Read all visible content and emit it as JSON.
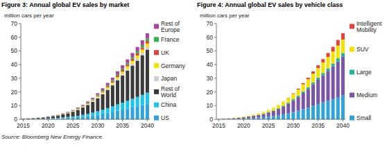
{
  "chart_data": [
    {
      "type": "bar",
      "stacked": true,
      "grid": false,
      "legend": "right",
      "title": "Figure 3: Annual global EV sales by market",
      "y_label": "million cars per year",
      "x": [
        2015,
        2016,
        2017,
        2018,
        2019,
        2020,
        2021,
        2022,
        2023,
        2024,
        2025,
        2026,
        2027,
        2028,
        2029,
        2030,
        2031,
        2032,
        2033,
        2034,
        2035,
        2036,
        2037,
        2038,
        2039,
        2040
      ],
      "xlim": [
        2014.5,
        2040.5
      ],
      "xticks": [
        2015,
        2020,
        2025,
        2030,
        2035,
        2040
      ],
      "ylim": [
        0,
        70
      ],
      "yticks": [
        0,
        10,
        20,
        30,
        40,
        50,
        60,
        70
      ],
      "series": [
        {
          "name": "US",
          "color": "#2fa3dc",
          "values": [
            0.1,
            0.1,
            0.2,
            0.2,
            0.3,
            0.4,
            0.5,
            0.6,
            0.8,
            1.0,
            1.2,
            1.5,
            1.9,
            2.3,
            2.8,
            3.4,
            4.1,
            4.8,
            5.5,
            6.3,
            7.1,
            7.9,
            8.7,
            9.5,
            10.4,
            11.3
          ]
        },
        {
          "name": "China",
          "color": "#19c6e8",
          "values": [
            0.1,
            0.1,
            0.1,
            0.2,
            0.2,
            0.3,
            0.4,
            0.4,
            0.6,
            0.7,
            0.9,
            1.1,
            1.4,
            1.7,
            2.1,
            2.5,
            2.9,
            3.4,
            4.0,
            4.6,
            5.1,
            5.7,
            6.3,
            6.9,
            7.5,
            8.2
          ]
        },
        {
          "name": "Rest of World",
          "color": "#3a3a3a",
          "values": [
            0.3,
            0.4,
            0.5,
            0.6,
            0.8,
            1.1,
            1.4,
            1.7,
            2.2,
            2.7,
            3.4,
            4.3,
            5.3,
            6.5,
            7.9,
            9.5,
            11.3,
            13.3,
            15.3,
            17.5,
            19.8,
            22,
            24.3,
            26.5,
            29,
            31.5
          ]
        },
        {
          "name": "Japan",
          "color": "#d0d0d0",
          "values": [
            0.02,
            0.02,
            0.03,
            0.04,
            0.05,
            0.06,
            0.08,
            0.1,
            0.1,
            0.2,
            0.2,
            0.3,
            0.3,
            0.4,
            0.5,
            0.6,
            0.7,
            0.8,
            0.9,
            1.1,
            1.2,
            1.3,
            1.5,
            1.6,
            1.7,
            1.9
          ]
        },
        {
          "name": "Germany",
          "color": "#f2e400",
          "values": [
            0.02,
            0.03,
            0.04,
            0.05,
            0.06,
            0.08,
            0.1,
            0.1,
            0.2,
            0.2,
            0.3,
            0.3,
            0.4,
            0.5,
            0.6,
            0.8,
            0.9,
            1.1,
            1.2,
            1.4,
            1.6,
            1.8,
            1.9,
            2.1,
            2.3,
            2.5
          ]
        },
        {
          "name": "UK",
          "color": "#e8413c",
          "values": [
            0.02,
            0.02,
            0.03,
            0.04,
            0.05,
            0.06,
            0.08,
            0.1,
            0.1,
            0.2,
            0.2,
            0.3,
            0.3,
            0.4,
            0.5,
            0.6,
            0.7,
            0.8,
            0.9,
            1.1,
            1.2,
            1.3,
            1.5,
            1.6,
            1.7,
            1.9
          ]
        },
        {
          "name": "France",
          "color": "#2db34a",
          "values": [
            0.02,
            0.02,
            0.03,
            0.04,
            0.05,
            0.06,
            0.08,
            0.1,
            0.1,
            0.2,
            0.2,
            0.3,
            0.3,
            0.4,
            0.5,
            0.6,
            0.7,
            0.8,
            0.9,
            1.0,
            1.1,
            1.2,
            1.4,
            1.5,
            1.7,
            1.8
          ]
        },
        {
          "name": "Rest of Europe",
          "color": "#b0419d",
          "values": [
            0.03,
            0.04,
            0.05,
            0.07,
            0.1,
            0.1,
            0.2,
            0.2,
            0.3,
            0.3,
            0.4,
            0.5,
            0.6,
            0.8,
            0.9,
            1.1,
            1.4,
            1.6,
            1.8,
            2.1,
            2.4,
            2.6,
            2.9,
            3.2,
            3.5,
            3.8
          ]
        }
      ]
    },
    {
      "type": "bar",
      "stacked": true,
      "grid": false,
      "legend": "right",
      "title": "Figure 4: Annual global EV sales by vehicle class",
      "y_label": "million cars per year",
      "x": [
        2015,
        2016,
        2017,
        2018,
        2019,
        2020,
        2021,
        2022,
        2023,
        2024,
        2025,
        2026,
        2027,
        2028,
        2029,
        2030,
        2031,
        2032,
        2033,
        2034,
        2035,
        2036,
        2037,
        2038,
        2039,
        2040
      ],
      "xlim": [
        2014.5,
        2040.5
      ],
      "xticks": [
        2015,
        2020,
        2025,
        2030,
        2035,
        2040
      ],
      "ylim": [
        0,
        70
      ],
      "yticks": [
        0,
        10,
        20,
        30,
        40,
        50,
        60,
        70
      ],
      "series": [
        {
          "name": "Small",
          "color": "#2fa3dc",
          "values": [
            0.1,
            0.2,
            0.3,
            0.3,
            0.4,
            0.6,
            0.8,
            1.0,
            1.2,
            1.5,
            1.9,
            2.4,
            2.9,
            3.6,
            4.4,
            5.3,
            6.3,
            7.4,
            8.5,
            9.8,
            11.1,
            12.3,
            13.6,
            14.8,
            16.2,
            17.6
          ]
        },
        {
          "name": "Medium",
          "color": "#7b55a8",
          "values": [
            0.2,
            0.3,
            0.4,
            0.5,
            0.7,
            0.9,
            1.2,
            1.5,
            1.9,
            2.4,
            3.1,
            3.8,
            4.7,
            5.9,
            7.1,
            8.6,
            10.1,
            11.9,
            13.7,
            15.8,
            17.8,
            19.8,
            21.8,
            23.9,
            26.1,
            28.4
          ]
        },
        {
          "name": "Large",
          "color": "#1fb59a",
          "values": [
            0.02,
            0.02,
            0.03,
            0.1,
            0.1,
            0.1,
            0.1,
            0.1,
            0.2,
            0.2,
            0.3,
            0.3,
            0.4,
            0.5,
            0.6,
            0.8,
            0.9,
            1.1,
            1.2,
            1.4,
            1.6,
            1.8,
            1.9,
            2.1,
            2.3,
            2.5
          ]
        },
        {
          "name": "SUV",
          "color": "#f2e400",
          "values": [
            0.2,
            0.2,
            0.2,
            0.3,
            0.4,
            0.5,
            0.6,
            0.8,
            1.0,
            1.3,
            1.5,
            2.0,
            2.5,
            3.0,
            3.5,
            3.9,
            4.5,
            5.2,
            5.9,
            6.4,
            7.0,
            7.7,
            8.3,
            8.8,
            9.3,
            9.8
          ]
        },
        {
          "name": "Intelligent Mobility",
          "color": "#e8413c",
          "values": [
            0,
            0,
            0,
            0,
            0,
            0,
            0,
            0,
            0,
            0,
            0,
            0,
            0,
            0,
            0.2,
            0.4,
            0.7,
            0.9,
            1.2,
            1.6,
            2.0,
            2.4,
            2.9,
            3.4,
            4.1,
            4.7
          ]
        }
      ]
    }
  ],
  "source": "Source: Bloomberg New Energy Finance."
}
